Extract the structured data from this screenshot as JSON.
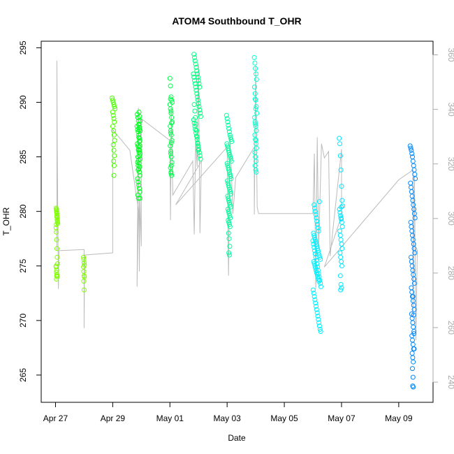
{
  "chart_data": {
    "type": "scatter",
    "title": "ATOM4 Southbound T_OHR",
    "xlabel": "Date",
    "ylabel": "T_OHR",
    "x_tick_labels": [
      "Apr 27",
      "Apr 29",
      "May 01",
      "May 03",
      "May 05",
      "May 07",
      "May 09"
    ],
    "x_tick_days": [
      0,
      2,
      4,
      6,
      8,
      10,
      12
    ],
    "xlim_days": [
      -0.5,
      13.2
    ],
    "ylim": [
      262.5,
      295.6
    ],
    "y_ticks": [
      265,
      270,
      275,
      280,
      285,
      290,
      295
    ],
    "y2_ticks": [
      240,
      260,
      280,
      300,
      320,
      340,
      360
    ],
    "y2lim": [
      232.6,
      365.0
    ],
    "grid": false,
    "colors": {
      "c1": "#80ff00",
      "c2": "#4cff00",
      "c3": "#00ff22",
      "c4": "#00ff4c",
      "c5": "#00ff80",
      "c6": "#00ffa0",
      "c7": "#00ffd0",
      "c8": "#00f0ff",
      "c9": "#00e4ff",
      "c10": "#0088ff",
      "line": "#bbbbbb",
      "axis": "#000000",
      "right_axis": "#aaaaaa"
    },
    "secondary_line": [
      [
        0.05,
        276.4
      ],
      [
        0.05,
        293.8
      ],
      [
        0.06,
        286.4
      ],
      [
        0.1,
        272.9
      ],
      [
        0.12,
        276.4
      ],
      [
        1.0,
        276.5
      ],
      [
        1.0,
        269.3
      ],
      [
        1.02,
        276.0
      ],
      [
        2.0,
        276.2
      ],
      [
        2.0,
        287.5
      ],
      [
        2.6,
        285.6
      ],
      [
        2.9,
        280.1
      ],
      [
        2.85,
        273.1
      ],
      [
        2.9,
        289.5
      ],
      [
        2.93,
        274.5
      ],
      [
        2.95,
        281.0
      ],
      [
        3.0,
        276.8
      ],
      [
        3.0,
        288.5
      ],
      [
        4.0,
        286.5
      ],
      [
        4.02,
        279.2
      ],
      [
        4.05,
        289.5
      ],
      [
        4.1,
        281.5
      ],
      [
        4.8,
        284.6
      ],
      [
        4.85,
        277.9
      ],
      [
        4.9,
        286.5
      ],
      [
        4.95,
        284.1
      ],
      [
        5.0,
        293.5
      ],
      [
        5.05,
        278.0
      ],
      [
        5.1,
        284.6
      ],
      [
        4.2,
        280.6
      ],
      [
        6.0,
        285.9
      ],
      [
        6.05,
        274.1
      ],
      [
        6.1,
        287.0
      ],
      [
        6.2,
        279.8
      ],
      [
        6.3,
        283.1
      ],
      [
        6.95,
        285.9
      ],
      [
        6.95,
        279.7
      ],
      [
        7.0,
        293.4
      ],
      [
        7.05,
        280.4
      ],
      [
        7.1,
        279.8
      ],
      [
        9.0,
        279.8
      ],
      [
        9.05,
        285.3
      ],
      [
        9.1,
        272.9
      ],
      [
        9.15,
        286.8
      ],
      [
        9.2,
        276.6
      ],
      [
        9.3,
        286.2
      ],
      [
        9.4,
        284.9
      ],
      [
        9.55,
        285.5
      ],
      [
        9.6,
        275.9
      ],
      [
        10.0,
        285.7
      ],
      [
        10.0,
        279.6
      ],
      [
        9.4,
        274.9
      ],
      [
        12.0,
        282.9
      ],
      [
        12.5,
        283.8
      ],
      [
        12.5,
        270.5
      ],
      [
        12.55,
        283.3
      ],
      [
        12.6,
        268.2
      ],
      [
        12.65,
        276.5
      ]
    ],
    "series": [
      {
        "color": "c1",
        "x": [
          0.02,
          0.03,
          0.04,
          0.05,
          0.06,
          0.07,
          0.08,
          0.02,
          0.03,
          0.04,
          0.05,
          0.06,
          0.07,
          0.02,
          0.04,
          0.05,
          0.06,
          0.03,
          0.04,
          0.05,
          0.07,
          0.03,
          0.04,
          0.05,
          0.06,
          0.02,
          0.03,
          0.04
        ],
        "y": [
          280.3,
          280.1,
          279.9,
          279.6,
          279.4,
          279.1,
          278.9,
          278.5,
          278.1,
          277.4,
          276.6,
          275.8,
          275.2,
          274.9,
          274.6,
          274.2,
          274.0,
          273.8,
          280.0,
          279.5,
          279.0,
          278.8,
          280.2,
          279.8,
          279.2,
          275.0,
          274.4,
          274.1
        ]
      },
      {
        "color": "c1",
        "x": [
          0.98,
          0.99,
          1.0,
          1.01,
          0.98,
          0.99,
          1.0,
          1.01,
          0.99,
          1.0
        ],
        "y": [
          275.8,
          275.6,
          275.3,
          275.1,
          274.9,
          274.5,
          274.1,
          274.0,
          273.6,
          272.8
        ]
      },
      {
        "color": "c2",
        "x": [
          1.98,
          2.0,
          2.02,
          2.04,
          2.06,
          2.08,
          2.0,
          2.02,
          2.04,
          2.06,
          2.0,
          2.03,
          2.05,
          2.07,
          2.02,
          2.04,
          2.06,
          2.03,
          2.05,
          2.04
        ],
        "y": [
          290.4,
          290.2,
          290.0,
          289.8,
          289.6,
          289.4,
          289.1,
          288.8,
          288.5,
          288.2,
          287.8,
          287.4,
          287.0,
          286.5,
          286.1,
          285.6,
          285.1,
          284.6,
          284.2,
          283.3
        ]
      },
      {
        "color": "c3",
        "x": [
          2.85,
          2.87,
          2.89,
          2.91,
          2.93,
          2.95,
          2.86,
          2.88,
          2.9,
          2.92,
          2.94,
          2.96,
          2.86,
          2.88,
          2.9,
          2.92,
          2.94,
          2.96,
          2.87,
          2.89,
          2.91,
          2.93,
          2.95,
          2.87,
          2.89,
          2.91,
          2.93,
          2.95,
          2.88,
          2.9,
          2.92,
          2.94,
          2.96,
          2.88,
          2.9,
          2.92,
          2.94,
          2.89,
          2.91,
          2.93,
          2.95,
          2.9,
          2.92,
          2.94,
          2.96,
          2.91,
          2.93,
          2.95
        ],
        "y": [
          287.8,
          287.5,
          287.3,
          287.0,
          286.7,
          286.5,
          288.9,
          288.6,
          288.3,
          288.0,
          287.7,
          287.4,
          286.2,
          286.0,
          285.7,
          285.4,
          285.1,
          284.8,
          284.5,
          284.2,
          283.9,
          283.6,
          283.3,
          283.0,
          282.7,
          282.4,
          282.1,
          281.8,
          281.5,
          281.2,
          285.9,
          285.6,
          285.3,
          285.0,
          284.7,
          284.4,
          284.1,
          283.8,
          286.8,
          286.4,
          286.0,
          285.6,
          289.1,
          288.7,
          288.3,
          287.9,
          287.5,
          281.2
        ]
      },
      {
        "color": "c4",
        "x": [
          4.0,
          4.02,
          4.04,
          4.06,
          4.08,
          4.0,
          4.02,
          4.04,
          4.06,
          4.08,
          4.01,
          4.03,
          4.05,
          4.07,
          4.01,
          4.03,
          4.05,
          4.07,
          4.02,
          4.04,
          4.06,
          4.02,
          4.04,
          4.06,
          4.03,
          4.05,
          4.03,
          4.05,
          4.04
        ],
        "y": [
          292.2,
          291.5,
          290.5,
          290.2,
          290.0,
          289.8,
          289.4,
          289.0,
          288.6,
          288.2,
          287.8,
          287.4,
          287.0,
          286.5,
          286.0,
          285.5,
          285.0,
          284.5,
          284.0,
          283.6,
          283.3,
          290.3,
          289.2,
          288.1,
          287.2,
          286.3,
          285.3,
          284.2,
          283.5
        ]
      },
      {
        "color": "c5",
        "x": [
          4.82,
          4.84,
          4.86,
          4.88,
          4.9,
          4.92,
          4.94,
          4.96,
          4.98,
          5.0,
          5.02,
          5.04,
          5.06,
          5.08,
          4.83,
          4.85,
          4.87,
          4.89,
          4.91,
          4.93,
          4.95,
          4.97,
          4.99,
          5.01,
          5.03,
          5.05,
          5.07,
          4.84,
          4.86,
          4.88,
          4.9,
          4.92,
          4.94,
          4.96,
          4.98,
          5.0,
          5.02,
          5.04,
          4.85,
          4.87,
          4.89,
          4.91,
          4.93,
          4.95,
          4.97,
          4.99
        ],
        "y": [
          292.6,
          292.3,
          292.0,
          291.7,
          291.4,
          291.1,
          290.8,
          290.5,
          290.2,
          289.9,
          289.6,
          289.3,
          289.0,
          288.7,
          288.4,
          288.1,
          287.8,
          287.5,
          287.2,
          286.9,
          286.6,
          286.3,
          286.0,
          285.7,
          285.4,
          285.1,
          284.8,
          294.4,
          294.1,
          293.8,
          293.5,
          293.2,
          292.9,
          292.6,
          292.3,
          292.0,
          291.7,
          291.4,
          289.8,
          289.2,
          288.6,
          288.0,
          287.4,
          286.8,
          286.2,
          285.6
        ]
      },
      {
        "color": "c6",
        "x": [
          5.98,
          6.0,
          6.02,
          6.04,
          6.06,
          6.08,
          6.1,
          6.12,
          6.14,
          6.16,
          5.99,
          6.01,
          6.03,
          6.05,
          6.07,
          6.09,
          6.11,
          6.13,
          6.15,
          6.0,
          6.02,
          6.04,
          6.06,
          6.08,
          6.1,
          6.12,
          6.14,
          6.01,
          6.03,
          6.05,
          6.07,
          6.09,
          6.11,
          6.13,
          6.02,
          6.04,
          6.06,
          6.08,
          6.1,
          6.12,
          6.03,
          6.05,
          6.07,
          6.09,
          6.11,
          6.04,
          6.06,
          6.08,
          6.1,
          6.05,
          6.07,
          6.09,
          6.06,
          6.08
        ],
        "y": [
          288.8,
          288.5,
          288.2,
          287.9,
          287.6,
          287.3,
          287.0,
          286.8,
          286.6,
          286.4,
          286.2,
          286.0,
          285.8,
          285.6,
          285.4,
          285.2,
          285.0,
          284.8,
          284.6,
          284.4,
          284.2,
          284.0,
          283.8,
          283.6,
          283.4,
          283.2,
          283.0,
          282.8,
          282.6,
          282.4,
          282.2,
          282.0,
          281.8,
          281.6,
          281.4,
          281.2,
          281.0,
          280.8,
          280.6,
          280.4,
          280.2,
          280.0,
          279.8,
          279.6,
          279.4,
          279.2,
          279.0,
          278.8,
          278.6,
          278.0,
          277.5,
          276.8,
          276.2,
          276.0
        ]
      },
      {
        "color": "c7",
        "x": [
          6.95,
          6.97,
          6.99,
          7.01,
          7.03,
          6.96,
          6.98,
          7.0,
          7.02,
          7.04,
          6.96,
          6.98,
          7.0,
          7.02,
          6.97,
          6.99,
          7.01,
          7.03,
          6.97,
          6.99,
          7.01,
          6.98,
          7.0,
          7.02,
          6.98,
          7.0,
          6.99,
          7.01
        ],
        "y": [
          294.1,
          293.6,
          293.1,
          292.6,
          292.1,
          291.4,
          290.8,
          290.2,
          289.6,
          289.0,
          288.6,
          288.2,
          287.8,
          287.4,
          287.0,
          286.6,
          286.2,
          285.8,
          285.4,
          285.0,
          284.6,
          284.2,
          283.8,
          283.6,
          290.3,
          289.4,
          288.0,
          286.5
        ]
      },
      {
        "color": "c8",
        "x": [
          9.0,
          9.02,
          9.04,
          9.06,
          9.08,
          9.1,
          9.12,
          9.14,
          9.16,
          9.18,
          9.2,
          9.22,
          9.24,
          9.26,
          9.28,
          9.01,
          9.03,
          9.05,
          9.07,
          9.09,
          9.11,
          9.13,
          9.15,
          9.17,
          9.19,
          9.21,
          9.23,
          9.25,
          9.27,
          9.02,
          9.04,
          9.06,
          9.08,
          9.1,
          9.12,
          9.14,
          9.16,
          9.18,
          9.2,
          9.22,
          9.24,
          9.26,
          9.03,
          9.05,
          9.07,
          9.09,
          9.11,
          9.13,
          9.15,
          9.17,
          9.19,
          9.21,
          9.23,
          9.04,
          9.06,
          9.08,
          9.1,
          9.12,
          9.14,
          9.16,
          9.18,
          9.2
        ],
        "y": [
          277.3,
          277.0,
          276.7,
          276.4,
          276.1,
          275.8,
          275.5,
          275.2,
          274.9,
          274.6,
          274.3,
          274.0,
          273.7,
          273.4,
          273.1,
          272.8,
          272.5,
          272.2,
          271.9,
          271.6,
          271.3,
          271.0,
          270.7,
          270.4,
          270.1,
          269.8,
          269.5,
          269.2,
          269.0,
          278.0,
          277.8,
          277.6,
          277.4,
          277.2,
          277.0,
          276.8,
          276.6,
          276.4,
          276.2,
          276.0,
          275.8,
          275.6,
          275.4,
          275.2,
          275.0,
          274.8,
          274.6,
          274.4,
          274.2,
          274.0,
          273.8,
          273.6,
          280.9,
          280.6,
          280.3,
          280.0,
          279.7,
          279.4,
          279.1,
          278.8,
          278.5,
          278.2
        ]
      },
      {
        "color": "c9",
        "x": [
          9.92,
          9.94,
          9.96,
          9.98,
          10.0,
          10.02,
          10.04,
          9.93,
          9.95,
          9.97,
          9.99,
          10.01,
          10.03,
          9.94,
          9.96,
          9.98,
          10.0,
          10.02,
          9.95,
          9.97,
          9.99,
          10.01,
          9.96,
          9.98,
          10.0,
          9.97,
          9.99,
          9.98
        ],
        "y": [
          286.7,
          286.2,
          285.1,
          283.8,
          282.3,
          281.0,
          280.5,
          280.2,
          279.9,
          279.6,
          279.3,
          279.0,
          278.6,
          278.2,
          277.8,
          277.4,
          277.0,
          276.6,
          276.2,
          275.8,
          275.4,
          275.0,
          274.1,
          273.3,
          273.0,
          272.8,
          280.4,
          279.4
        ]
      },
      {
        "color": "c10",
        "x": [
          12.4,
          12.42,
          12.44,
          12.46,
          12.48,
          12.5,
          12.52,
          12.54,
          12.56,
          12.58,
          12.41,
          12.43,
          12.45,
          12.47,
          12.49,
          12.51,
          12.53,
          12.55,
          12.57,
          12.42,
          12.44,
          12.46,
          12.48,
          12.5,
          12.52,
          12.54,
          12.56,
          12.43,
          12.45,
          12.47,
          12.49,
          12.51,
          12.53,
          12.55,
          12.44,
          12.46,
          12.48,
          12.5,
          12.52,
          12.54,
          12.45,
          12.47,
          12.49,
          12.51,
          12.53,
          12.46,
          12.48,
          12.5,
          12.52,
          12.47,
          12.49,
          12.51,
          12.48,
          12.5,
          12.49,
          12.51,
          12.5,
          12.52,
          12.53,
          12.54
        ],
        "y": [
          286.0,
          285.8,
          285.6,
          285.3,
          285.0,
          284.6,
          284.2,
          283.8,
          283.4,
          283.0,
          282.6,
          282.2,
          281.8,
          281.4,
          281.0,
          280.6,
          280.2,
          279.8,
          279.4,
          279.0,
          278.6,
          278.2,
          277.8,
          277.4,
          277.0,
          276.6,
          276.2,
          275.8,
          275.4,
          275.0,
          274.6,
          274.2,
          273.8,
          273.4,
          273.0,
          272.6,
          272.2,
          271.8,
          271.4,
          271.0,
          270.6,
          270.2,
          269.8,
          269.4,
          269.0,
          268.6,
          268.2,
          267.8,
          267.4,
          267.0,
          266.6,
          266.2,
          265.6,
          264.8,
          264.0,
          263.9,
          272.2,
          270.5,
          268.8,
          267.4
        ]
      }
    ]
  }
}
